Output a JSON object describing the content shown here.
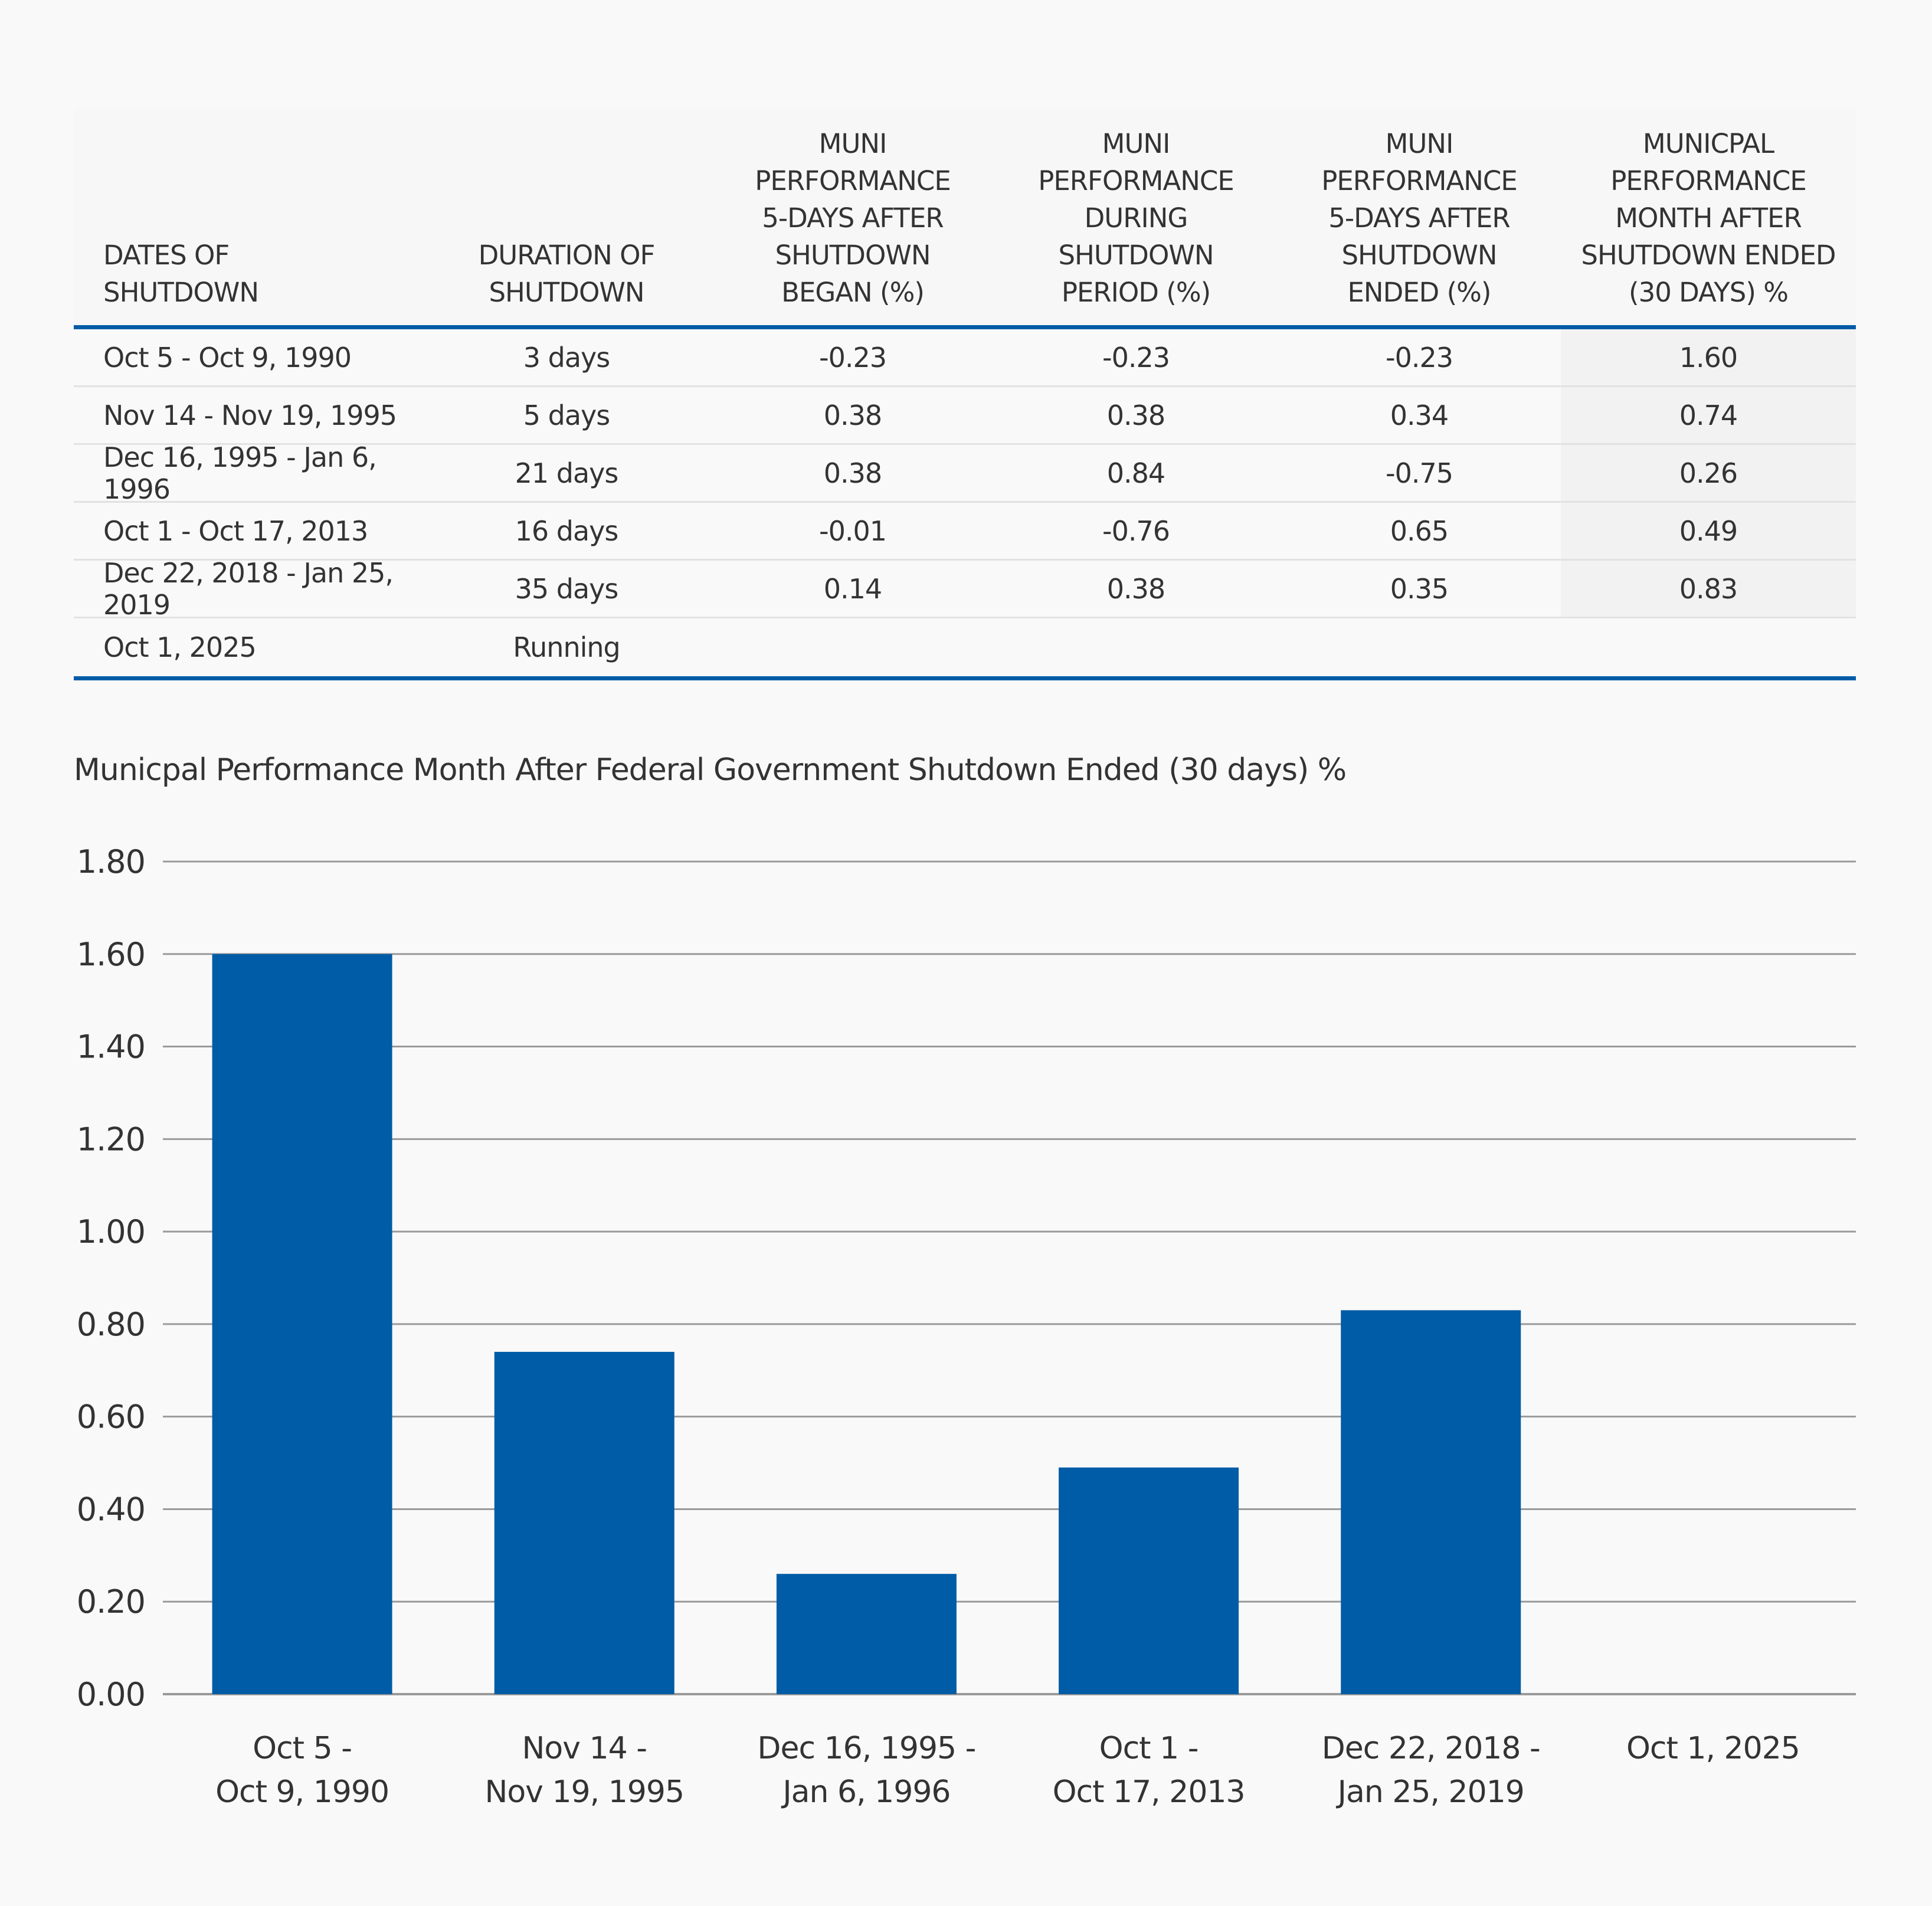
{
  "table": {
    "headers": [
      [
        "DATES OF",
        "SHUTDOWN"
      ],
      [
        "DURATION OF",
        "SHUTDOWN"
      ],
      [
        "MUNI",
        "PERFORMANCE",
        "5-DAYS AFTER",
        "SHUTDOWN",
        "BEGAN (%)"
      ],
      [
        "MUNI",
        "PERFORMANCE",
        "DURING",
        "SHUTDOWN",
        "PERIOD (%)"
      ],
      [
        "MUNI",
        "PERFORMANCE",
        "5-DAYS AFTER",
        "SHUTDOWN",
        "ENDED (%)"
      ],
      [
        "MUNICPAL",
        "PERFORMANCE",
        "MONTH AFTER",
        "SHUTDOWN ENDED",
        "(30 DAYS) %"
      ]
    ],
    "rows": [
      [
        "Oct 5 - Oct 9, 1990",
        "3 days",
        "-0.23",
        "-0.23",
        "-0.23",
        "1.60"
      ],
      [
        "Nov 14 - Nov 19, 1995",
        "5 days",
        "0.38",
        "0.38",
        "0.34",
        "0.74"
      ],
      [
        "Dec 16, 1995 - Jan 6, 1996",
        "21 days",
        "0.38",
        "0.84",
        "-0.75",
        "0.26"
      ],
      [
        "Oct 1 - Oct 17, 2013",
        "16 days",
        "-0.01",
        "-0.76",
        "0.65",
        "0.49"
      ],
      [
        "Dec 22, 2018 - Jan 25, 2019",
        "35 days",
        "0.14",
        "0.38",
        "0.35",
        "0.83"
      ],
      [
        "Oct 1, 2025",
        "Running",
        "",
        "",
        "",
        ""
      ]
    ]
  },
  "colors": {
    "accent": "#005ca6",
    "bar": "#005ca6",
    "grid": "#9a9a9a",
    "highlight": "#f2f2f2"
  },
  "chart_data": {
    "type": "bar",
    "title": "Municpal Performance Month After Federal Government Shutdown Ended (30 days) %",
    "categories": [
      [
        "Oct 5 -",
        "Oct 9, 1990"
      ],
      [
        "Nov 14 -",
        "Nov 19, 1995"
      ],
      [
        "Dec 16, 1995 -",
        "Jan 6, 1996"
      ],
      [
        "Oct 1 -",
        "Oct 17, 2013"
      ],
      [
        "Dec 22, 2018 -",
        "Jan 25, 2019"
      ],
      [
        "Oct 1, 2025"
      ]
    ],
    "values": [
      1.6,
      0.74,
      0.26,
      0.49,
      0.83,
      null
    ],
    "xlabel": "",
    "ylabel": "",
    "ylim": [
      0,
      1.8
    ],
    "yticks": [
      "0.00",
      "0.20",
      "0.40",
      "0.60",
      "0.80",
      "1.00",
      "1.20",
      "1.40",
      "1.60",
      "1.80"
    ],
    "grid": true,
    "legend": "none"
  }
}
